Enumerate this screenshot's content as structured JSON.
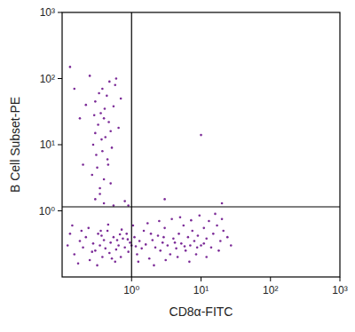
{
  "chart_data": {
    "type": "scatter",
    "x_label": "CD8α-FITC",
    "y_label": "B Cell Subset-PE",
    "log": true,
    "xlim": [
      0.1,
      1000
    ],
    "ylim": [
      0.1,
      1000
    ],
    "xticks": [
      {
        "value": 1,
        "label": "10⁰"
      },
      {
        "value": 10,
        "label": "10¹"
      },
      {
        "value": 100,
        "label": "10²"
      },
      {
        "value": 1000,
        "label": "10³"
      }
    ],
    "yticks": [
      {
        "value": 1,
        "label": "10⁰"
      },
      {
        "value": 10,
        "label": "10¹"
      },
      {
        "value": 100,
        "label": "10²"
      },
      {
        "value": 1000,
        "label": "10³"
      }
    ],
    "color": "#7b2a97",
    "marker": "dot",
    "gates": {
      "x": 1,
      "y": 1.15
    },
    "x": [
      0.12,
      0.15,
      0.18,
      0.2,
      0.22,
      0.25,
      0.28,
      0.3,
      0.33,
      0.35,
      0.38,
      0.4,
      0.42,
      0.45,
      0.48,
      0.5,
      0.55,
      0.6,
      0.65,
      0.7,
      0.75,
      0.8,
      0.85,
      0.9,
      0.95,
      1,
      1.1,
      1.2,
      1.3,
      1.4,
      1.5,
      1.6,
      1.8,
      2,
      2.2,
      2.4,
      2.6,
      2.8,
      3,
      3.3,
      3.6,
      4,
      4.4,
      4.8,
      5.2,
      5.6,
      6,
      6.5,
      7,
      7.5,
      8,
      8.5,
      9,
      10,
      11,
      12,
      13,
      14,
      15,
      17,
      19,
      21,
      24,
      27,
      0.14,
      0.17,
      0.24,
      0.32,
      0.46,
      0.58,
      0.72,
      1.05,
      1.7,
      2.5,
      3.8,
      5,
      7.2,
      9.5,
      16,
      20,
      0.13,
      0.27,
      0.37,
      0.52,
      0.68,
      1.25,
      2.1,
      3.1,
      4.6,
      6.8,
      12,
      18,
      0.19,
      0.36,
      0.62,
      0.88,
      1.15,
      1.9,
      2.9,
      4.2,
      5.8,
      8.8,
      11,
      0.3,
      0.35,
      0.4,
      0.32,
      0.45,
      0.38,
      0.28,
      0.42,
      0.5,
      0.33,
      0.4,
      0.36,
      0.55,
      0.3,
      0.44,
      0.38,
      0.48,
      0.25,
      0.6,
      0.35,
      0.5,
      0.27,
      0.46,
      0.31,
      0.52,
      0.37,
      0.3,
      0.47,
      0.29,
      0.41,
      0.34,
      0.58,
      0.22,
      0.65,
      0.4,
      0.55,
      0.13,
      0.2,
      0.18,
      0.7,
      0.15,
      0.8,
      10,
      3,
      20,
      0.9
    ],
    "values": [
      0.3,
      0.22,
      0.35,
      0.28,
      0.4,
      0.18,
      0.32,
      0.25,
      0.45,
      0.3,
      0.2,
      0.36,
      0.27,
      0.5,
      0.23,
      0.33,
      0.4,
      0.26,
      0.3,
      0.2,
      0.38,
      0.28,
      0.45,
      0.24,
      0.33,
      0.3,
      0.4,
      0.22,
      0.35,
      0.27,
      0.5,
      0.31,
      0.19,
      0.36,
      0.28,
      0.42,
      0.25,
      0.33,
      0.55,
      0.3,
      0.22,
      0.38,
      0.27,
      0.45,
      0.32,
      0.6,
      0.25,
      0.4,
      0.3,
      0.5,
      0.35,
      0.22,
      0.42,
      0.3,
      0.55,
      0.38,
      0.7,
      0.28,
      0.45,
      0.6,
      0.35,
      0.5,
      0.4,
      0.3,
      0.6,
      0.16,
      0.55,
      0.15,
      0.62,
      0.17,
      0.52,
      0.6,
      0.65,
      0.7,
      0.75,
      0.8,
      0.72,
      0.85,
      0.9,
      0.75,
      0.45,
      0.24,
      0.42,
      0.19,
      0.44,
      0.17,
      0.15,
      0.18,
      0.2,
      0.17,
      0.2,
      0.25,
      0.5,
      0.5,
      0.36,
      0.37,
      0.29,
      0.45,
      0.4,
      0.33,
      0.29,
      0.28,
      0.32,
      1.5,
      2.2,
      3,
      4.5,
      6,
      8,
      10,
      13,
      16,
      20,
      25,
      30,
      38,
      45,
      55,
      70,
      90,
      110,
      100,
      1.8,
      2.6,
      3.5,
      5,
      7,
      9,
      12,
      15,
      22,
      28,
      35,
      60,
      80,
      40,
      18,
      1.3,
      1.2,
      150,
      5,
      25,
      50,
      70,
      1.4,
      14,
      1.5,
      1.3,
      1.2
    ]
  }
}
